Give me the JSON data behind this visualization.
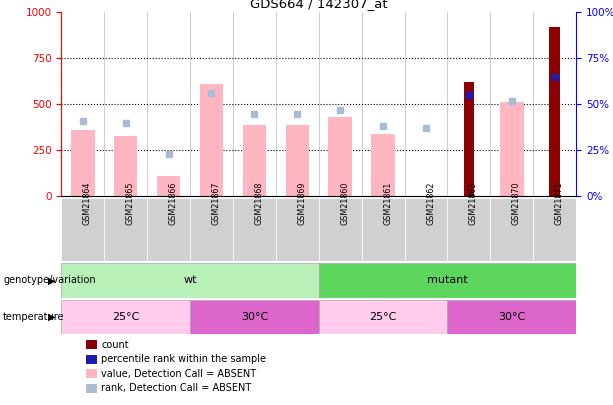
{
  "title": "GDS664 / 142307_at",
  "samples": [
    "GSM21864",
    "GSM21865",
    "GSM21866",
    "GSM21867",
    "GSM21868",
    "GSM21869",
    "GSM21860",
    "GSM21861",
    "GSM21862",
    "GSM21863",
    "GSM21870",
    "GSM21871"
  ],
  "count_values": [
    0,
    0,
    0,
    0,
    0,
    0,
    0,
    0,
    0,
    620,
    0,
    920
  ],
  "percentile_rank_scaled": [
    0,
    0,
    0,
    0,
    0,
    0,
    0,
    0,
    0,
    550,
    0,
    650
  ],
  "absent_value": [
    360,
    330,
    110,
    610,
    390,
    390,
    430,
    340,
    0,
    0,
    510,
    0
  ],
  "absent_rank_scaled": [
    410,
    400,
    230,
    560,
    445,
    445,
    470,
    380,
    370,
    0,
    520,
    0
  ],
  "ylim": [
    0,
    1000
  ],
  "yticks": [
    0,
    250,
    500,
    750,
    1000
  ],
  "y2ticks": [
    0,
    25,
    50,
    75,
    100
  ],
  "color_count": "#8B0000",
  "color_percentile": "#1C1CB0",
  "color_absent_value": "#FFB6C1",
  "color_absent_rank": "#AABBD4",
  "color_wt": "#B8F0B8",
  "color_mutant": "#5CD65C",
  "color_temp_25": "#FFCCEE",
  "color_temp_30": "#DD66CC",
  "color_label_bg": "#D0D0D0",
  "legend_labels": [
    "count",
    "percentile rank within the sample",
    "value, Detection Call = ABSENT",
    "rank, Detection Call = ABSENT"
  ],
  "legend_colors": [
    "#8B0000",
    "#1C1CB0",
    "#FFB6C1",
    "#AABBD4"
  ],
  "bar_width": 0.55
}
